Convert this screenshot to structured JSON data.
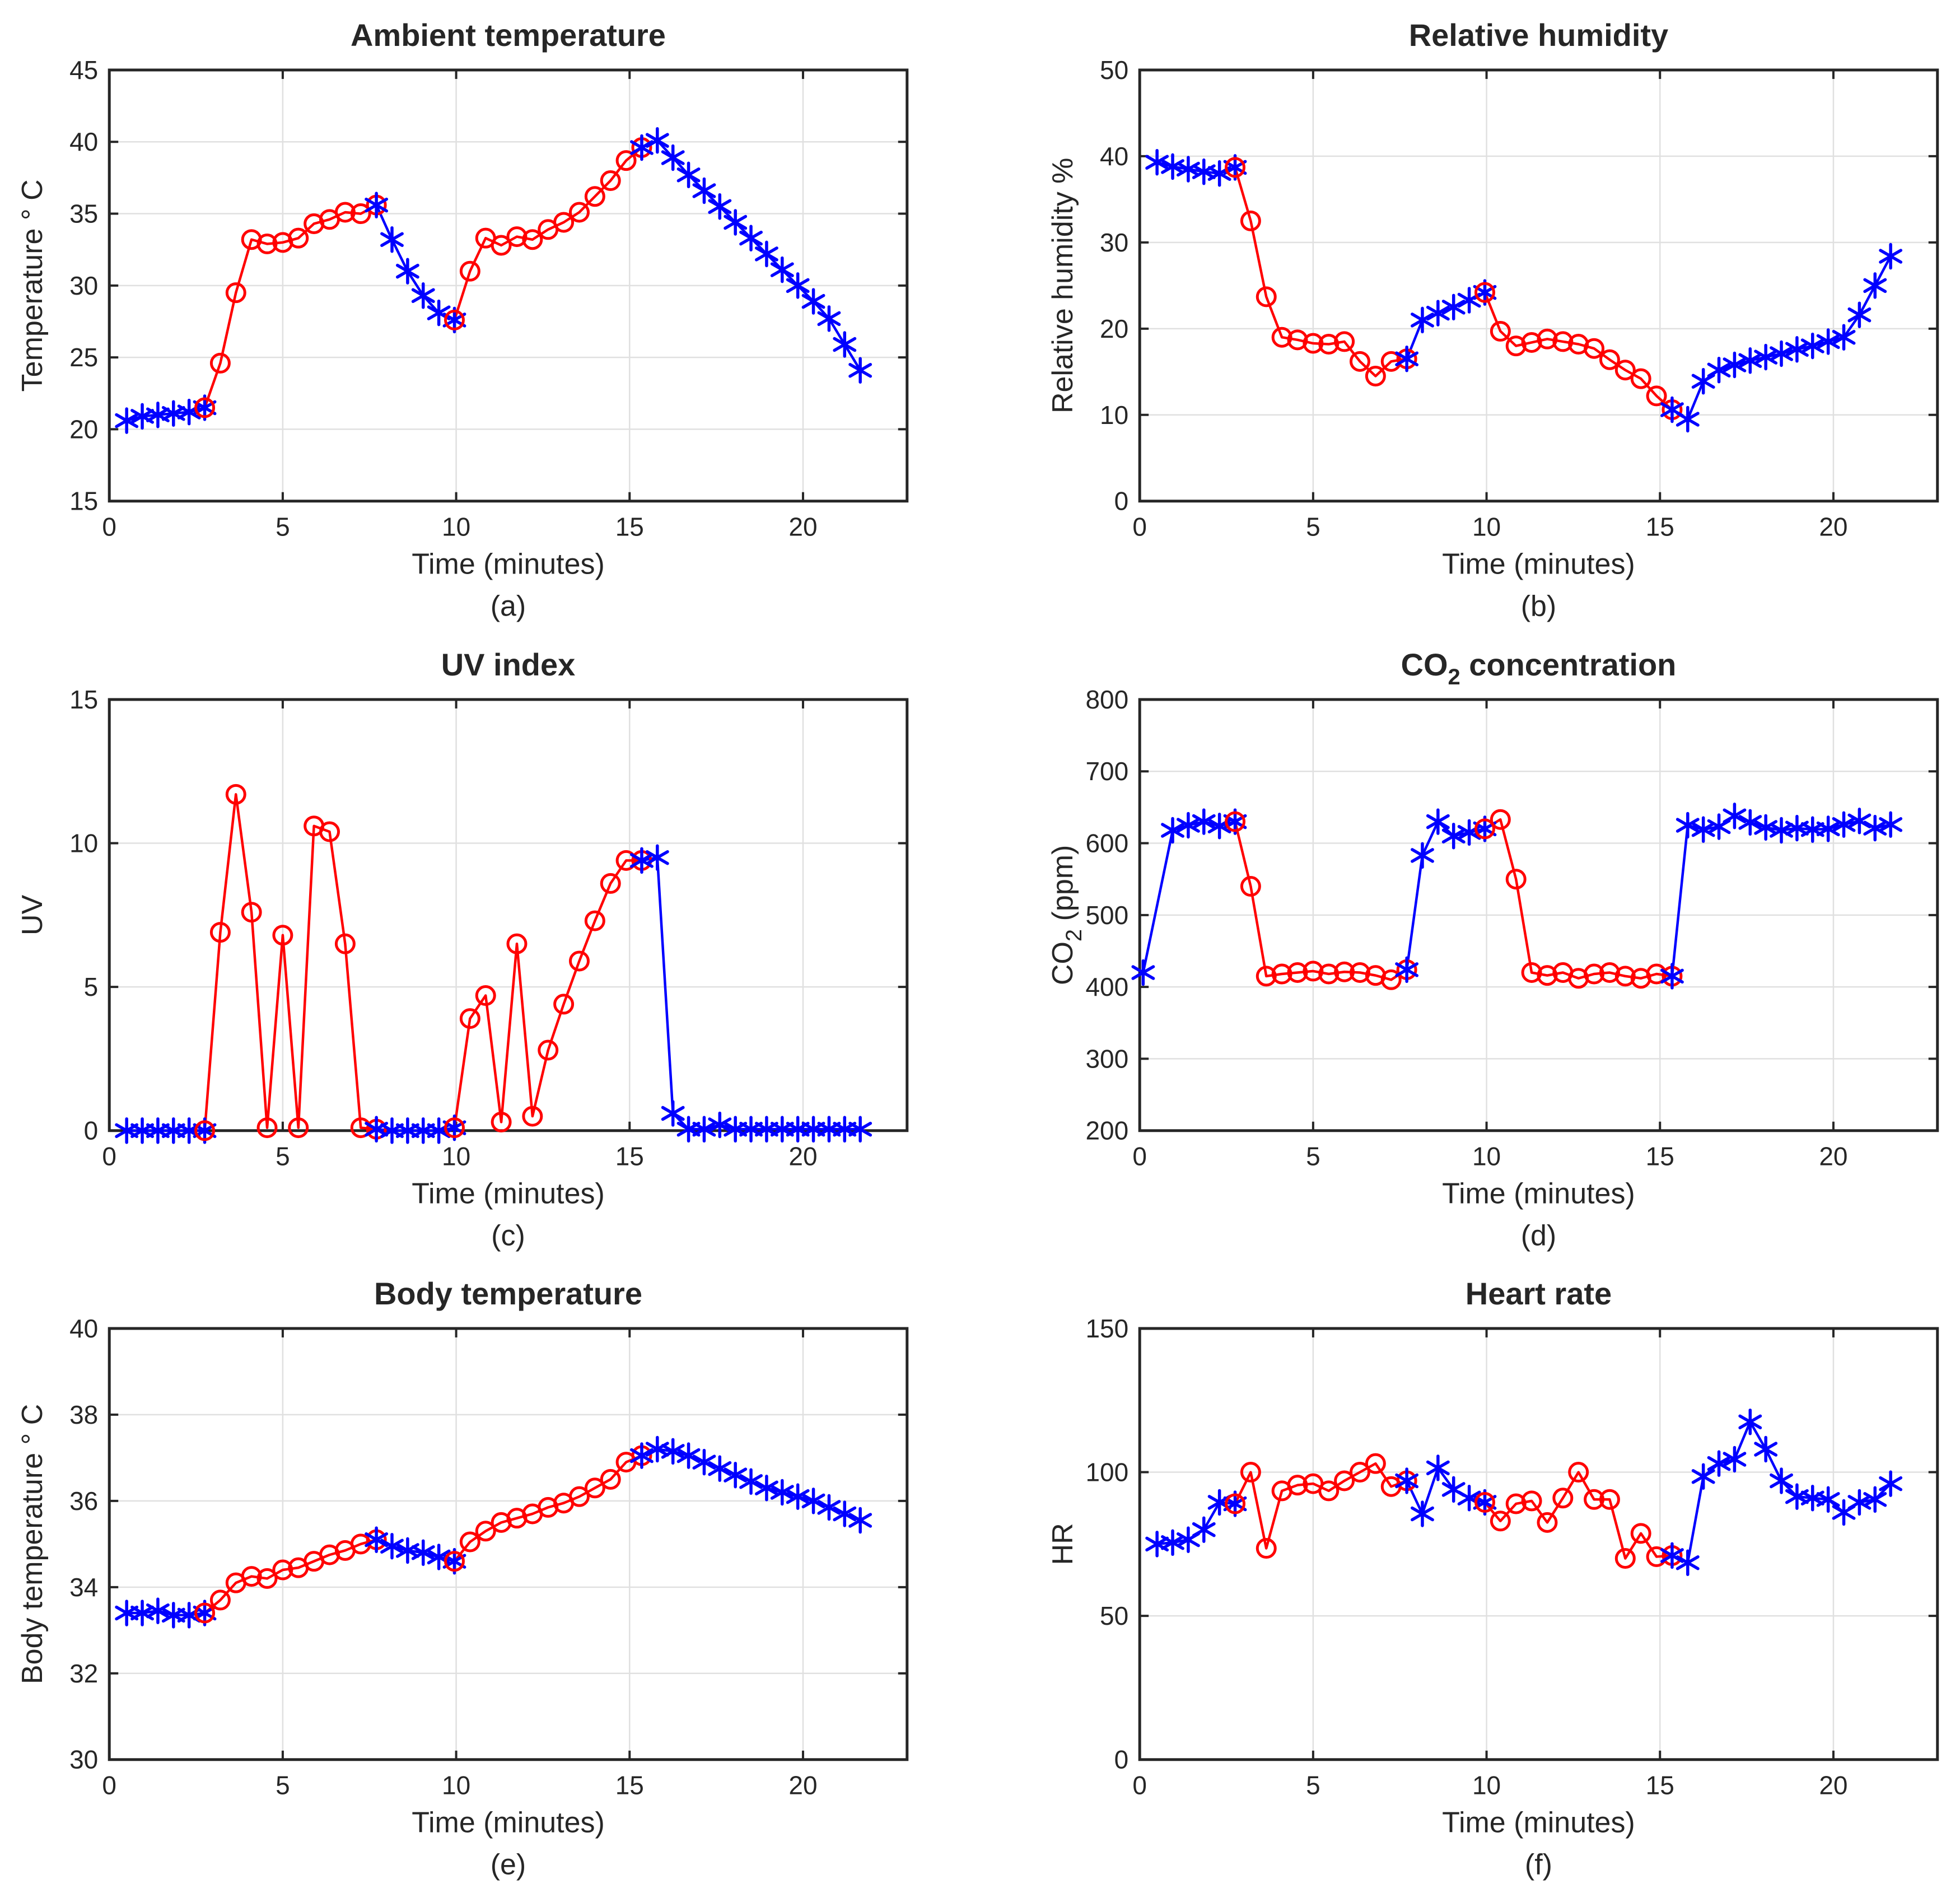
{
  "figure_background": "#ffffff",
  "colors": {
    "indoor_series_blue": "#0000ff",
    "outdoor_series_red": "#ff0000",
    "axis": "#262626",
    "grid": "#e0e0e0",
    "text": "#262626"
  },
  "marker_legend": {
    "blue_marker": "asterisk",
    "red_marker": "circle"
  },
  "chart_data": {
    "type": "line",
    "xlabel": "Time (minutes)",
    "xticks": [
      0,
      5,
      10,
      15,
      20
    ],
    "xlim": [
      0,
      23
    ],
    "grid": "on",
    "x": [
      0.5,
      0.95,
      1.4,
      1.85,
      2.3,
      2.75,
      3.2,
      3.65,
      4.1,
      4.55,
      5.0,
      5.45,
      5.9,
      6.35,
      6.8,
      7.25,
      7.7,
      8.15,
      8.6,
      9.05,
      9.5,
      9.95,
      10.4,
      10.85,
      11.3,
      11.75,
      12.2,
      12.65,
      13.1,
      13.55,
      14.0,
      14.45,
      14.9,
      15.35,
      15.8,
      16.25,
      16.7,
      17.15,
      17.6,
      18.05,
      18.5,
      18.95,
      19.4,
      19.85,
      20.3,
      20.75,
      21.2,
      21.65
    ],
    "segments": [
      {
        "color": "blue",
        "from": 0,
        "to": 5
      },
      {
        "color": "red",
        "from": 5,
        "to": 16
      },
      {
        "color": "blue",
        "from": 16,
        "to": 21
      },
      {
        "color": "red",
        "from": 21,
        "to": 33
      },
      {
        "color": "blue",
        "from": 33,
        "to": 47
      }
    ],
    "panels": [
      {
        "caption": "(a)",
        "title": "Ambient temperature",
        "ylabel": "Temperature ° C",
        "ylim": [
          15,
          45
        ],
        "yticks": [
          15,
          20,
          25,
          30,
          35,
          40,
          45
        ],
        "values": [
          20.6,
          20.9,
          21.0,
          21.1,
          21.2,
          21.5,
          24.6,
          29.5,
          33.2,
          32.9,
          33.0,
          33.3,
          34.3,
          34.6,
          35.1,
          35.0,
          35.6,
          33.2,
          31.0,
          29.3,
          28.1,
          27.6,
          31.0,
          33.3,
          32.8,
          33.4,
          33.2,
          33.9,
          34.4,
          35.1,
          36.2,
          37.3,
          38.7,
          39.6,
          40.1,
          38.9,
          37.7,
          36.6,
          35.5,
          34.4,
          33.3,
          32.2,
          31.1,
          30.0,
          28.9,
          27.7,
          25.9,
          24.1
        ]
      },
      {
        "caption": "(b)",
        "title": "Relative humidity",
        "ylabel": "Relative humidity %",
        "ylim": [
          0,
          50
        ],
        "yticks": [
          0,
          10,
          20,
          30,
          40,
          50
        ],
        "values": [
          39.3,
          38.8,
          38.5,
          38.2,
          38.0,
          38.7,
          32.5,
          23.7,
          19.0,
          18.7,
          18.3,
          18.2,
          18.5,
          16.2,
          14.5,
          16.2,
          16.5,
          21.0,
          21.8,
          22.5,
          23.3,
          24.2,
          19.7,
          18.0,
          18.4,
          18.8,
          18.5,
          18.2,
          17.7,
          16.4,
          15.2,
          14.2,
          12.2,
          10.6,
          9.5,
          13.9,
          15.2,
          15.8,
          16.3,
          16.7,
          17.1,
          17.6,
          18.0,
          18.5,
          19.0,
          21.6,
          25.0,
          28.4
        ]
      },
      {
        "caption": "(c)",
        "title": "UV index",
        "ylabel": "UV",
        "ylim": [
          0,
          15
        ],
        "yticks": [
          0,
          5,
          10,
          15
        ],
        "values": [
          0,
          0,
          0,
          0,
          0,
          0,
          6.9,
          11.7,
          7.6,
          0.1,
          6.8,
          0.1,
          10.6,
          10.4,
          6.5,
          0.1,
          0.05,
          0,
          0,
          0,
          0,
          0.1,
          3.9,
          4.7,
          0.3,
          6.5,
          0.5,
          2.8,
          4.4,
          5.9,
          7.3,
          8.6,
          9.4,
          9.4,
          9.5,
          0.6,
          0.05,
          0.05,
          0.2,
          0.05,
          0.05,
          0.05,
          0.05,
          0.05,
          0.05,
          0.05,
          0.05,
          0.05
        ]
      },
      {
        "caption": "(d)",
        "title": "CO2 concentration",
        "title_runs": [
          [
            "CO",
            false
          ],
          [
            "2",
            true
          ],
          [
            " concentration",
            false
          ]
        ],
        "ylabel": "CO2 (ppm)",
        "ylabel_runs": [
          [
            "CO",
            false
          ],
          [
            "2",
            true
          ],
          [
            " (ppm)",
            false
          ]
        ],
        "ylim": [
          200,
          800
        ],
        "yticks": [
          200,
          300,
          400,
          500,
          600,
          700,
          800
        ],
        "x_first": 0.1,
        "values": [
          420,
          618,
          625,
          630,
          624,
          630,
          540,
          415,
          418,
          420,
          422,
          418,
          421,
          420,
          416,
          410,
          424,
          583,
          630,
          610,
          615,
          620,
          633,
          550,
          420,
          416,
          420,
          412,
          418,
          420,
          415,
          412,
          418,
          415,
          625,
          619,
          623,
          638,
          629,
          622,
          618,
          621,
          619,
          620,
          626,
          631,
          621,
          626
        ]
      },
      {
        "caption": "(e)",
        "title": "Body temperature",
        "ylabel": "Body temperature ° C",
        "ylim": [
          30,
          40
        ],
        "yticks": [
          30,
          32,
          34,
          36,
          38,
          40
        ],
        "values": [
          33.4,
          33.4,
          33.45,
          33.35,
          33.35,
          33.4,
          33.7,
          34.1,
          34.25,
          34.2,
          34.4,
          34.45,
          34.6,
          34.75,
          34.85,
          35.0,
          35.1,
          34.95,
          34.85,
          34.8,
          34.7,
          34.6,
          35.05,
          35.3,
          35.5,
          35.6,
          35.7,
          35.85,
          35.95,
          36.1,
          36.3,
          36.5,
          36.9,
          37.05,
          37.2,
          37.15,
          37.05,
          36.9,
          36.75,
          36.6,
          36.45,
          36.3,
          36.2,
          36.1,
          36.0,
          35.85,
          35.7,
          35.55
        ]
      },
      {
        "caption": "(f)",
        "title": "Heart rate",
        "ylabel": "HR",
        "ylim": [
          0,
          150
        ],
        "yticks": [
          0,
          50,
          100,
          150
        ],
        "values": [
          75,
          75.5,
          76.5,
          80,
          89.5,
          89,
          100,
          73.5,
          93.5,
          95.5,
          96,
          93.5,
          97,
          100,
          103,
          95,
          97,
          85.5,
          101.5,
          94,
          91,
          89.5,
          83,
          89,
          90,
          82.5,
          91,
          100,
          90.5,
          90.5,
          70,
          78.7,
          70.6,
          71,
          68.5,
          98.5,
          103,
          104.5,
          117.5,
          108,
          97,
          91.5,
          91,
          90.5,
          86,
          89.5,
          90.5,
          96
        ]
      }
    ]
  }
}
